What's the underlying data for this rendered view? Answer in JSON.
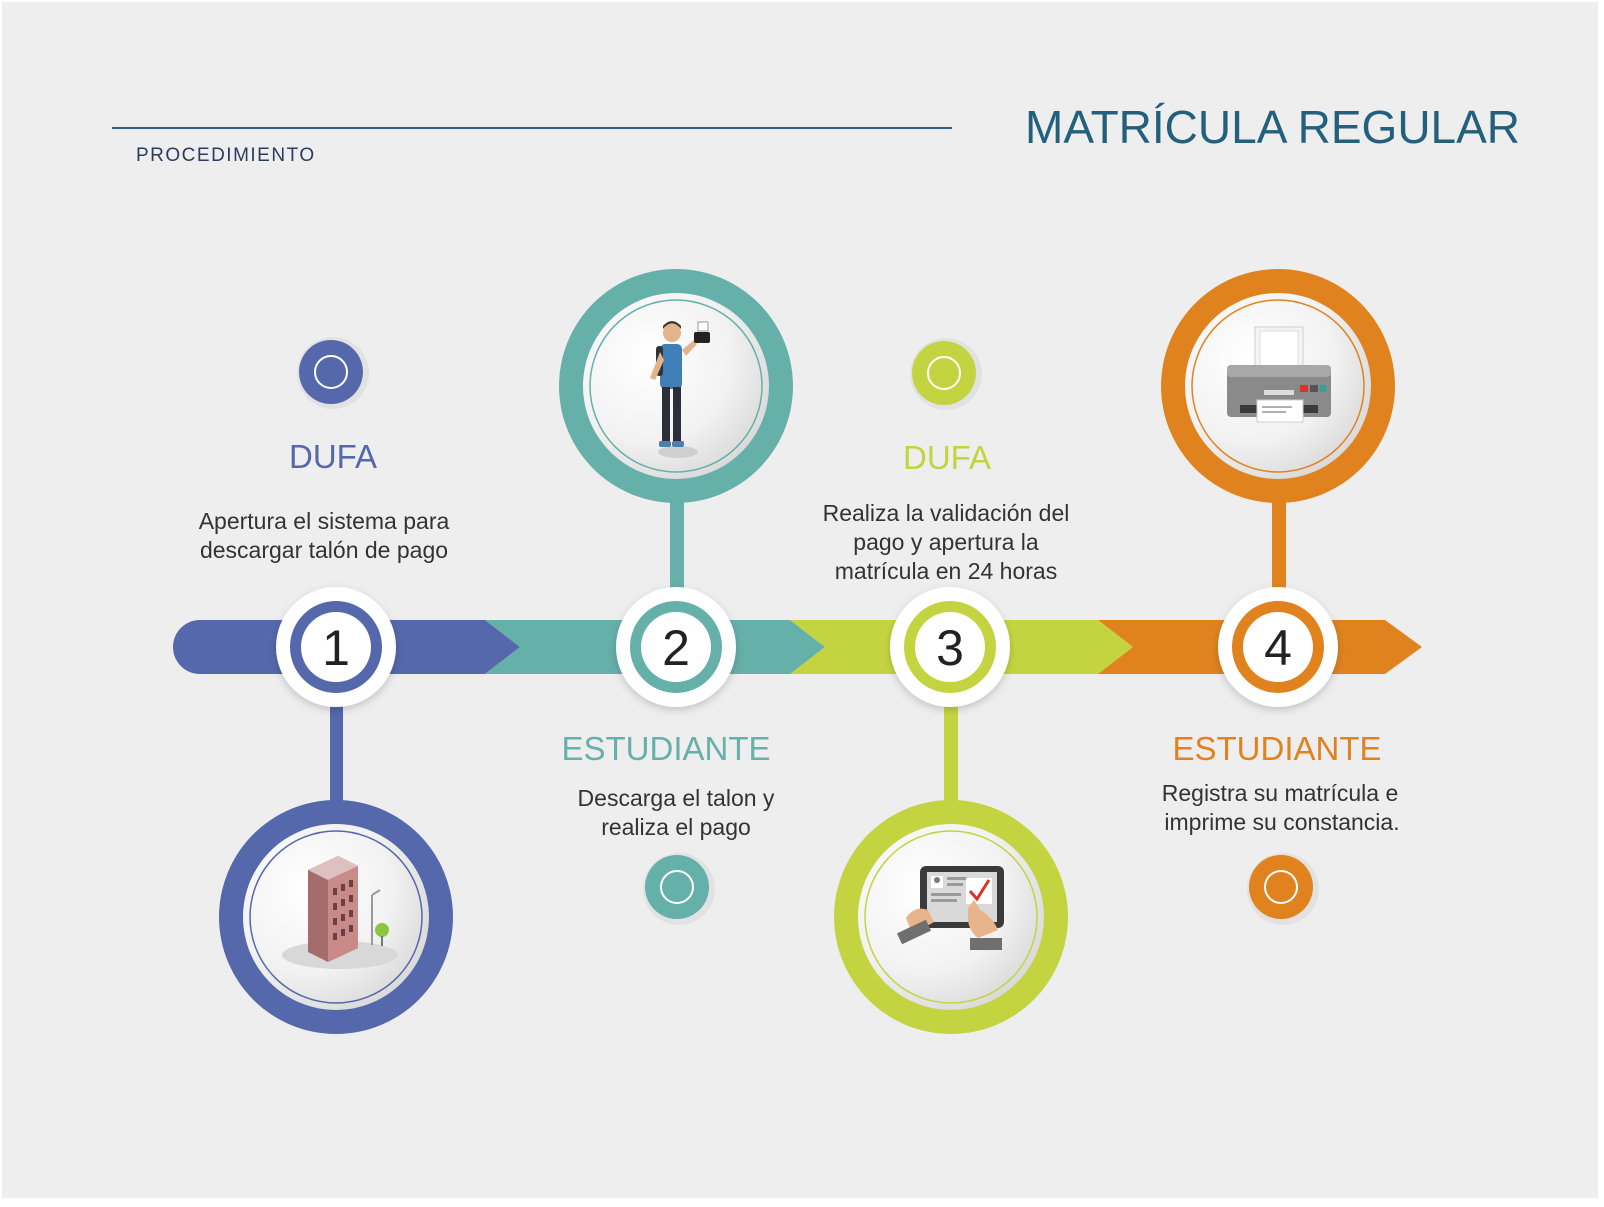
{
  "header": {
    "section_label": "PROCEDIMIENTO",
    "title": "MATRÍCULA REGULAR"
  },
  "colors": {
    "background": "#eeeeee",
    "title": "#23607e",
    "rule": "#2f5f80",
    "label": "#2b3d5c",
    "body_text": "#333333",
    "step1": "#5568ab",
    "step2": "#66b0aa",
    "step3": "#c4d441",
    "step4": "#e0831f"
  },
  "steps": [
    {
      "number": "1",
      "actor": "DUFA",
      "description": [
        "Apertura el sistema para",
        "descargar talón de pago"
      ],
      "icon": "office-building-icon"
    },
    {
      "number": "2",
      "actor": "ESTUDIANTE",
      "description": [
        "Descarga el talon  y",
        "realiza el pago"
      ],
      "icon": "student-with-phone-icon"
    },
    {
      "number": "3",
      "actor": "DUFA",
      "description": [
        "Realiza la validación del",
        "pago y apertura la",
        "matrícula en 24 horas"
      ],
      "icon": "tablet-checklist-icon"
    },
    {
      "number": "4",
      "actor": "ESTUDIANTE",
      "description": [
        "Registra su matrícula e",
        "imprime su constancia."
      ],
      "icon": "printer-icon"
    }
  ]
}
